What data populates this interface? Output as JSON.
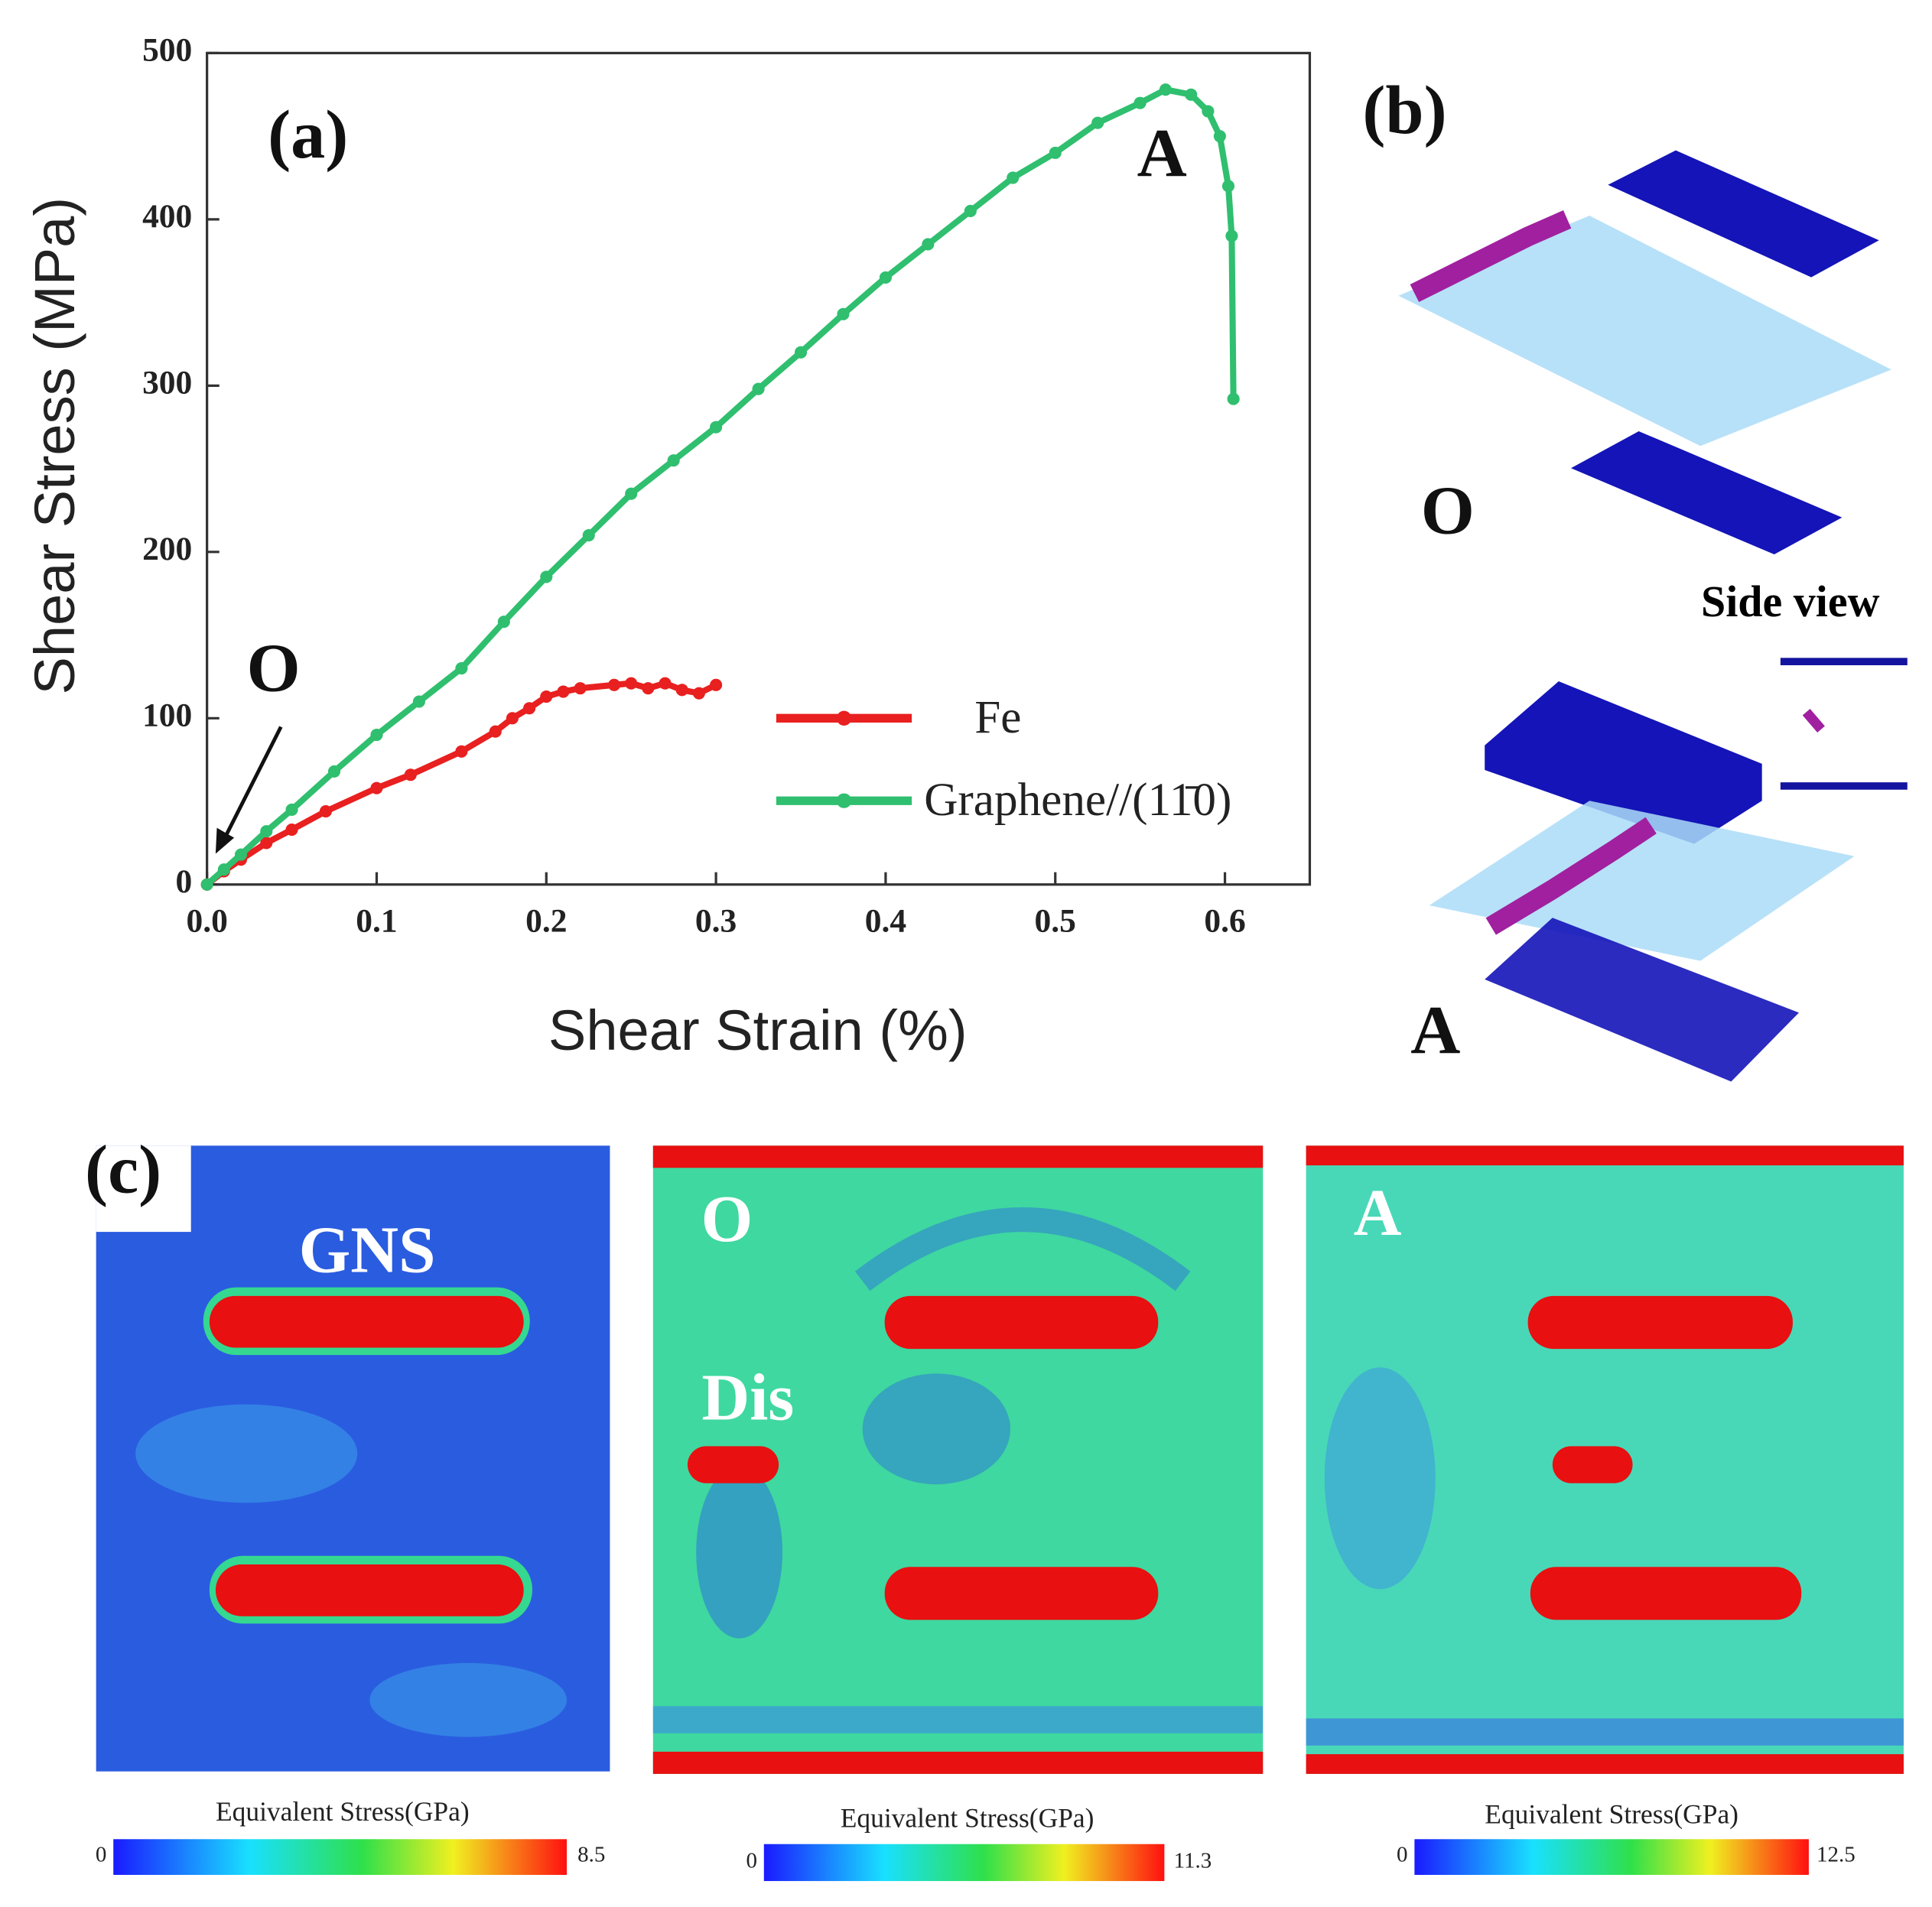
{
  "chart_data": {
    "type": "line",
    "panel_label": "(a)",
    "xlabel": "Shear Strain (%)",
    "ylabel": "Shear Stress (MPa)",
    "xlim": [
      0,
      0.65
    ],
    "ylim": [
      0,
      500
    ],
    "xticks": [
      {
        "value": 0,
        "label": "0.0"
      },
      0.1,
      0.2,
      0.3,
      0.4,
      0.5,
      0.6
    ],
    "yticks": [
      0,
      100,
      200,
      300,
      400,
      500
    ],
    "legend_position": "lower right",
    "annotations": [
      "O",
      "A"
    ],
    "series": [
      {
        "name": "Fe",
        "color": "#e8201f",
        "x": [
          0,
          0.01,
          0.02,
          0.035,
          0.05,
          0.07,
          0.1,
          0.12,
          0.15,
          0.17,
          0.18,
          0.19,
          0.2,
          0.21,
          0.22,
          0.24,
          0.25,
          0.26,
          0.27,
          0.28,
          0.29,
          0.3
        ],
        "values": [
          0,
          8,
          15,
          25,
          33,
          44,
          58,
          66,
          80,
          92,
          100,
          106,
          113,
          116,
          118,
          120,
          121,
          118,
          121,
          117,
          115,
          120
        ]
      },
      {
        "name": "Graphene//(11̄0)",
        "color": "#2fbf6f",
        "x": [
          0,
          0.01,
          0.02,
          0.035,
          0.05,
          0.075,
          0.1,
          0.125,
          0.15,
          0.175,
          0.2,
          0.225,
          0.25,
          0.275,
          0.3,
          0.325,
          0.35,
          0.375,
          0.4,
          0.425,
          0.45,
          0.475,
          0.5,
          0.525,
          0.55,
          0.565,
          0.58,
          0.59,
          0.597,
          0.602,
          0.604,
          0.605
        ],
        "values": [
          0,
          9,
          18,
          32,
          45,
          68,
          90,
          110,
          130,
          158,
          185,
          210,
          235,
          255,
          275,
          298,
          320,
          343,
          365,
          385,
          405,
          425,
          440,
          458,
          470,
          478,
          475,
          465,
          450,
          420,
          390,
          292
        ]
      }
    ]
  },
  "panel_b": {
    "label": "(b)",
    "states": [
      "O",
      "A"
    ],
    "side_view": "Side view"
  },
  "panel_c": {
    "label": "(c)",
    "maps": [
      {
        "label": "GNS",
        "colorbar": {
          "title": "Equivalent Stress(GPa)",
          "min": 0,
          "max": 8.5
        }
      },
      {
        "label": "O",
        "extra_label": "Dis",
        "colorbar": {
          "title": "Equivalent Stress(GPa)",
          "min": 0,
          "max": 11.3
        }
      },
      {
        "label": "A",
        "colorbar": {
          "title": "Equivalent Stress(GPa)",
          "min": 0,
          "max": 12.5
        }
      }
    ]
  }
}
